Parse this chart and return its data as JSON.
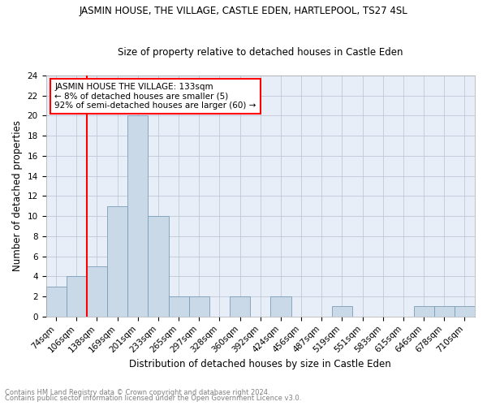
{
  "title": "JASMIN HOUSE, THE VILLAGE, CASTLE EDEN, HARTLEPOOL, TS27 4SL",
  "subtitle": "Size of property relative to detached houses in Castle Eden",
  "xlabel": "Distribution of detached houses by size in Castle Eden",
  "ylabel": "Number of detached properties",
  "bar_labels": [
    "74sqm",
    "106sqm",
    "138sqm",
    "169sqm",
    "201sqm",
    "233sqm",
    "265sqm",
    "297sqm",
    "328sqm",
    "360sqm",
    "392sqm",
    "424sqm",
    "456sqm",
    "487sqm",
    "519sqm",
    "551sqm",
    "583sqm",
    "615sqm",
    "646sqm",
    "678sqm",
    "710sqm"
  ],
  "bar_values": [
    3,
    4,
    5,
    11,
    20,
    10,
    2,
    2,
    0,
    2,
    0,
    2,
    0,
    0,
    1,
    0,
    0,
    0,
    1,
    1,
    1
  ],
  "bar_color": "#c9d9e8",
  "bar_edge_color": "#7a9db8",
  "reference_line_color": "red",
  "ylim": [
    0,
    24
  ],
  "yticks": [
    0,
    2,
    4,
    6,
    8,
    10,
    12,
    14,
    16,
    18,
    20,
    22,
    24
  ],
  "annotation_title": "JASMIN HOUSE THE VILLAGE: 133sqm",
  "annotation_line1": "← 8% of detached houses are smaller (5)",
  "annotation_line2": "92% of semi-detached houses are larger (60) →",
  "annotation_box_color": "red",
  "footnote1": "Contains HM Land Registry data © Crown copyright and database right 2024.",
  "footnote2": "Contains public sector information licensed under the Open Government Licence v3.0.",
  "grid_color": "#c0c8d8",
  "background_color": "#e8eef8",
  "title_fontsize": 8.5,
  "subtitle_fontsize": 8.5,
  "ylabel_fontsize": 8.5,
  "xlabel_fontsize": 8.5,
  "tick_fontsize": 7.5,
  "annot_fontsize": 7.5,
  "footnote_fontsize": 6.0
}
